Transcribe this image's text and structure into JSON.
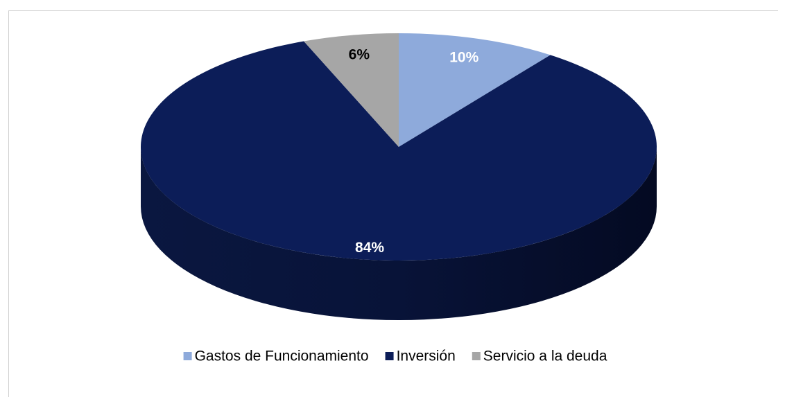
{
  "chart_data": {
    "type": "pie",
    "categories": [
      "Gastos de Funcionamiento",
      "Inversión",
      "Servicio a la deuda"
    ],
    "values": [
      10,
      84,
      6
    ],
    "value_labels": [
      "10%",
      "84%",
      "6%"
    ],
    "colors": [
      "#8eaadb",
      "#0c1d58",
      "#a6a6a6"
    ],
    "value_label_colors": [
      "#ffffff",
      "#ffffff",
      "#000000"
    ],
    "legend": "bottom"
  }
}
